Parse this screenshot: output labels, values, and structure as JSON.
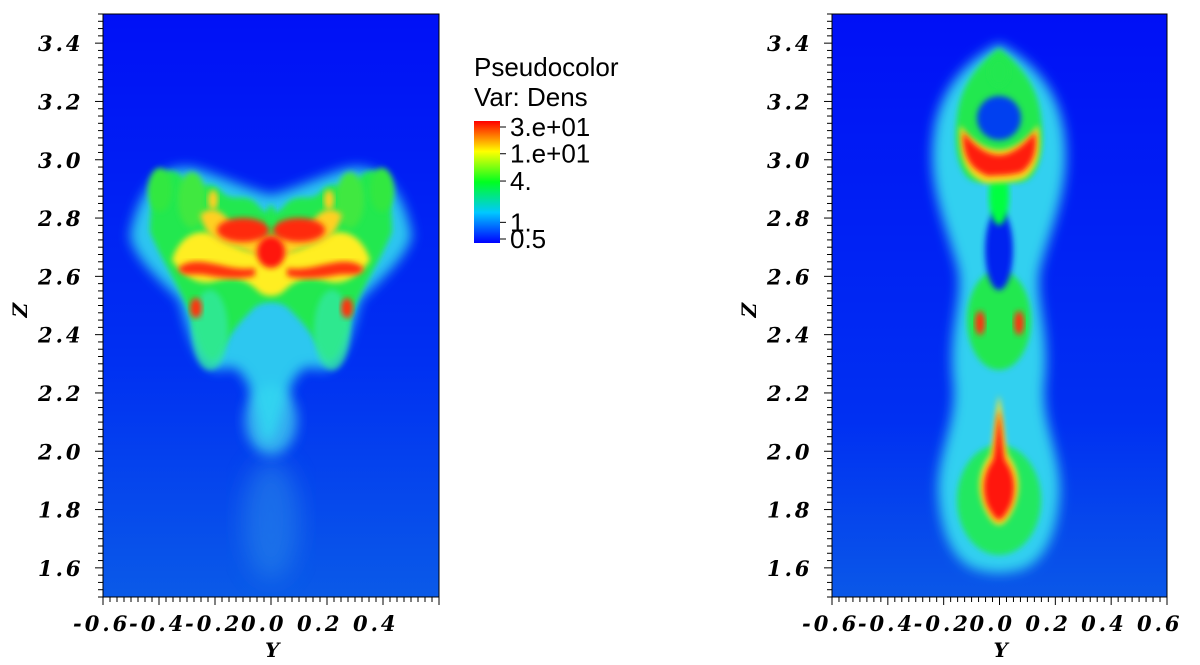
{
  "chart_data": [
    {
      "type": "heatmap",
      "plot_kind": "pseudocolor",
      "xlabel": "Y",
      "ylabel": "Z",
      "xlim": [
        -0.6,
        0.6
      ],
      "ylim": [
        1.5,
        3.5
      ],
      "x_tick_labels": [
        "-0.6",
        "-0.4",
        "-0.2",
        "0.0",
        "0.2",
        "0.4"
      ],
      "y_tick_labels": [
        "1.6",
        "1.8",
        "2.0",
        "2.2",
        "2.4",
        "2.6",
        "2.8",
        "3.0",
        "3.2",
        "3.4"
      ],
      "variable": "Dens",
      "legend": {
        "title": "Pseudocolor",
        "var_label": "Var: Dens",
        "scale": "log",
        "range": [
          0.5,
          30
        ],
        "ticks": [
          "3.e+01",
          "1.e+01",
          "4.",
          "1.",
          "0.5"
        ]
      }
    },
    {
      "type": "heatmap",
      "plot_kind": "pseudocolor",
      "xlabel": "Y",
      "ylabel": "Z",
      "xlim": [
        -0.6,
        0.6
      ],
      "ylim": [
        1.5,
        3.5
      ],
      "x_tick_labels": [
        "-0.6",
        "-0.4",
        "-0.2",
        "0.0",
        "0.2",
        "0.4",
        "0.6"
      ],
      "y_tick_labels": [
        "1.6",
        "1.8",
        "2.0",
        "2.2",
        "2.4",
        "2.6",
        "2.8",
        "3.0",
        "3.2",
        "3.4"
      ],
      "variable": "Dens"
    }
  ],
  "colormap": {
    "low": "#0000ff",
    "low_mid": "#00d8ff",
    "mid": "#00ff00",
    "high_mid": "#ffff00",
    "high": "#ff0000",
    "background": "#0000f8"
  }
}
